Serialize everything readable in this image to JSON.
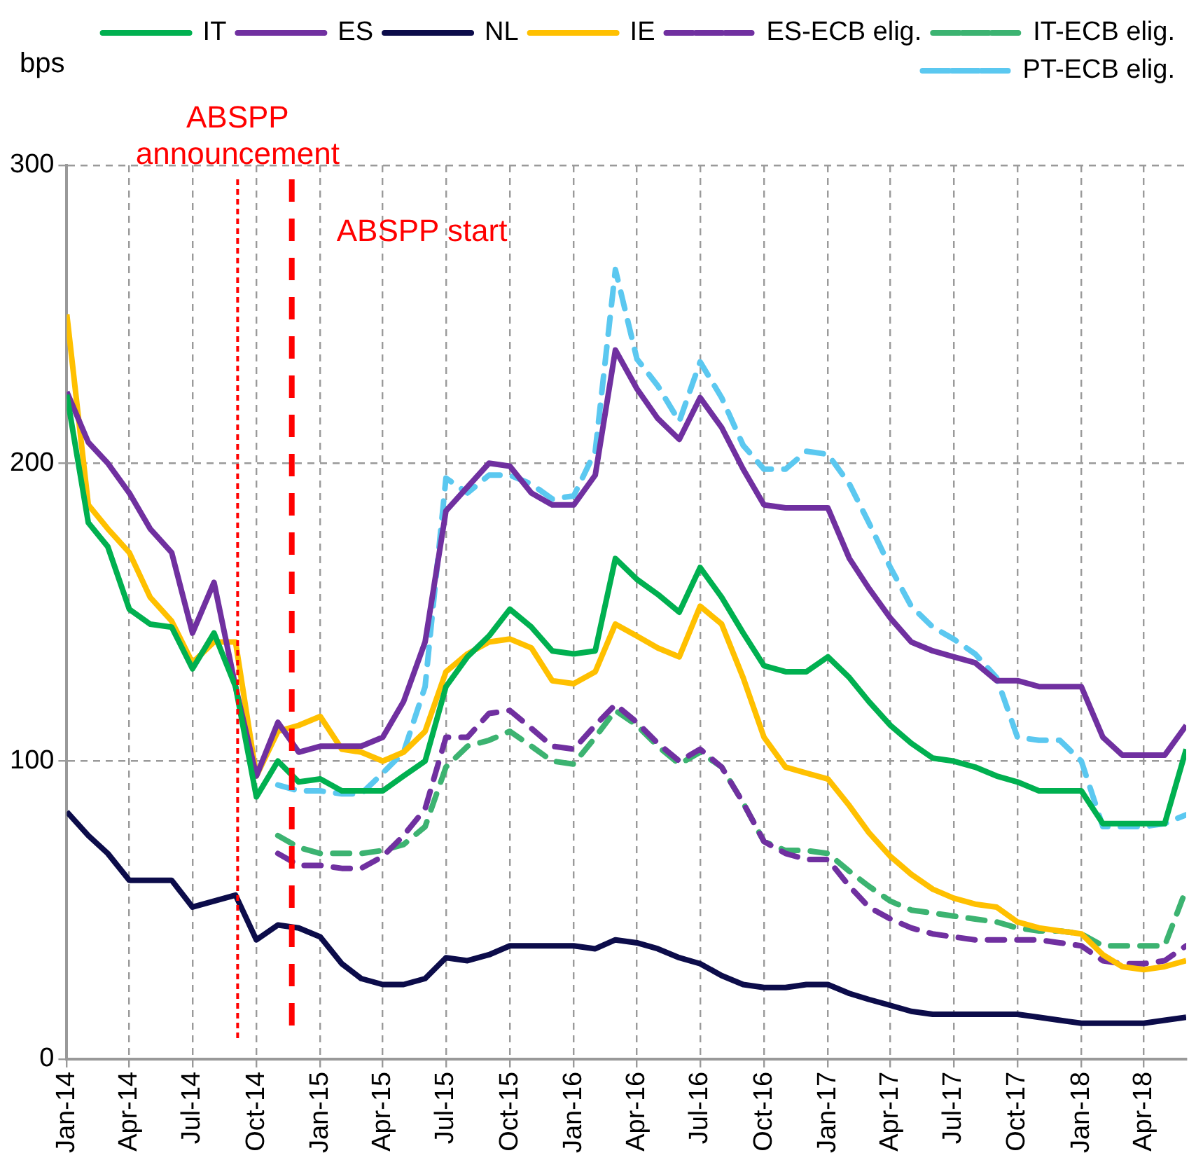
{
  "chart_data": {
    "type": "line",
    "ylabel": "bps",
    "legend": "top",
    "grid": true,
    "x": [
      "2014-01",
      "2014-02",
      "2014-03",
      "2014-04",
      "2014-05",
      "2014-06",
      "2014-07",
      "2014-08",
      "2014-09",
      "2014-10",
      "2014-11",
      "2014-12",
      "2015-01",
      "2015-02",
      "2015-03",
      "2015-04",
      "2015-05",
      "2015-06",
      "2015-07",
      "2015-08",
      "2015-09",
      "2015-10",
      "2015-11",
      "2015-12",
      "2016-01",
      "2016-02",
      "2016-03",
      "2016-04",
      "2016-05",
      "2016-06",
      "2016-07",
      "2016-08",
      "2016-09",
      "2016-10",
      "2016-11",
      "2016-12",
      "2017-01",
      "2017-02",
      "2017-03",
      "2017-04",
      "2017-05",
      "2017-06",
      "2017-07",
      "2017-08",
      "2017-09",
      "2017-10",
      "2017-11",
      "2017-12",
      "2018-01",
      "2018-02",
      "2018-03",
      "2018-04",
      "2018-05",
      "2018-06"
    ],
    "xlim": [
      "2014-01",
      "2018-06"
    ],
    "xticks": [
      {
        "value": "2014-01",
        "label": "Jan-14"
      },
      {
        "value": "2014-04",
        "label": "Apr-14"
      },
      {
        "value": "2014-07",
        "label": "Jul-14"
      },
      {
        "value": "2014-10",
        "label": "Oct-14"
      },
      {
        "value": "2015-01",
        "label": "Jan-15"
      },
      {
        "value": "2015-04",
        "label": "Apr-15"
      },
      {
        "value": "2015-07",
        "label": "Jul-15"
      },
      {
        "value": "2015-10",
        "label": "Oct-15"
      },
      {
        "value": "2016-01",
        "label": "Jan-16"
      },
      {
        "value": "2016-04",
        "label": "Apr-16"
      },
      {
        "value": "2016-07",
        "label": "Jul-16"
      },
      {
        "value": "2016-10",
        "label": "Oct-16"
      },
      {
        "value": "2017-01",
        "label": "Jan-17"
      },
      {
        "value": "2017-04",
        "label": "Apr-17"
      },
      {
        "value": "2017-07",
        "label": "Jul-17"
      },
      {
        "value": "2017-10",
        "label": "Oct-17"
      },
      {
        "value": "2018-01",
        "label": "Jan-18"
      },
      {
        "value": "2018-04",
        "label": "Apr-18"
      }
    ],
    "ylim": [
      0,
      300
    ],
    "yticks": [
      0,
      100,
      200,
      300
    ],
    "series": [
      {
        "name": "IT",
        "color": "#00b050",
        "line_style": "solid",
        "values": [
          223,
          180,
          172,
          151,
          146,
          145,
          131,
          143,
          125,
          88,
          100,
          93,
          94,
          90,
          90,
          90,
          95,
          100,
          125,
          135,
          142,
          151,
          145,
          137,
          136,
          137,
          168,
          161,
          156,
          150,
          165,
          155,
          143,
          132,
          130,
          130,
          135,
          128,
          120,
          112,
          106,
          101,
          100,
          98,
          95,
          93,
          90,
          90,
          90,
          79,
          79,
          79,
          79,
          104
        ]
      },
      {
        "name": "ES",
        "color": "#7030a0",
        "line_style": "solid",
        "values": [
          224,
          207,
          200,
          190,
          178,
          170,
          143,
          160,
          125,
          95,
          113,
          103,
          105,
          105,
          105,
          108,
          120,
          140,
          184,
          192,
          200,
          199,
          190,
          186,
          186,
          196,
          238,
          225,
          215,
          208,
          222,
          212,
          198,
          186,
          185,
          185,
          185,
          168,
          158,
          148,
          140,
          137,
          135,
          133,
          127,
          127,
          125,
          125,
          125,
          108,
          102,
          102,
          102,
          112
        ]
      },
      {
        "name": "NL",
        "color": "#0c0c4a",
        "line_style": "solid",
        "values": [
          83,
          75,
          69,
          60,
          60,
          60,
          51,
          53,
          55,
          40,
          45,
          44,
          41,
          32,
          27,
          25,
          25,
          27,
          34,
          33,
          35,
          38,
          38,
          38,
          38,
          37,
          40,
          39,
          37,
          34,
          32,
          28,
          25,
          24,
          24,
          25,
          25,
          22,
          20,
          18,
          16,
          15,
          15,
          15,
          15,
          15,
          14,
          13,
          12,
          12,
          12,
          12,
          13,
          14
        ]
      },
      {
        "name": "IE",
        "color": "#ffc000",
        "line_style": "solid",
        "values": [
          250,
          186,
          178,
          170,
          155,
          147,
          133,
          140,
          140,
          95,
          110,
          112,
          115,
          104,
          103,
          100,
          103,
          110,
          130,
          136,
          140,
          141,
          138,
          127,
          126,
          130,
          146,
          142,
          138,
          135,
          152,
          146,
          128,
          108,
          98,
          96,
          94,
          85,
          76,
          68,
          62,
          57,
          54,
          52,
          51,
          46,
          44,
          43,
          42,
          35,
          31,
          30,
          31,
          33
        ]
      },
      {
        "name": "ES-ECB elig.",
        "color": "#7030a0",
        "line_style": "dashed",
        "values": [
          null,
          null,
          null,
          null,
          null,
          null,
          null,
          null,
          null,
          null,
          69,
          65,
          65,
          64,
          64,
          68,
          75,
          84,
          108,
          108,
          116,
          117,
          111,
          105,
          104,
          112,
          119,
          113,
          106,
          100,
          104,
          98,
          86,
          73,
          69,
          67,
          67,
          58,
          51,
          47,
          44,
          42,
          41,
          40,
          40,
          40,
          40,
          39,
          38,
          33,
          32,
          32,
          33,
          38
        ]
      },
      {
        "name": "IT-ECB elig.",
        "color": "#3cb371",
        "line_style": "dashed",
        "values": [
          null,
          null,
          null,
          null,
          null,
          null,
          null,
          null,
          null,
          null,
          75,
          71,
          69,
          69,
          69,
          70,
          72,
          78,
          98,
          105,
          107,
          110,
          105,
          100,
          99,
          108,
          117,
          112,
          105,
          99,
          103,
          98,
          86,
          73,
          70,
          70,
          69,
          63,
          58,
          53,
          50,
          49,
          48,
          47,
          46,
          44,
          43,
          43,
          42,
          38,
          38,
          38,
          38,
          57
        ]
      },
      {
        "name": "PT-ECB elig.",
        "color": "#5bc8f0",
        "line_style": "dashed",
        "values": [
          null,
          null,
          null,
          null,
          null,
          null,
          null,
          null,
          null,
          null,
          92,
          90,
          90,
          89,
          89,
          96,
          103,
          125,
          195,
          190,
          196,
          196,
          193,
          188,
          189,
          204,
          265,
          235,
          226,
          214,
          234,
          222,
          206,
          198,
          198,
          204,
          203,
          193,
          180,
          165,
          152,
          145,
          141,
          136,
          128,
          108,
          107,
          107,
          100,
          78,
          78,
          78,
          79,
          82
        ]
      }
    ],
    "ref_lines": [
      {
        "axis": "x",
        "value": "2014-09-04",
        "label": "ABSPP announcement",
        "color": "#ff0000",
        "line_style": "dotted"
      },
      {
        "axis": "x",
        "value": "2014-11-21",
        "label": "ABSPP start",
        "color": "#ff0000",
        "line_style": "dashed"
      }
    ]
  }
}
